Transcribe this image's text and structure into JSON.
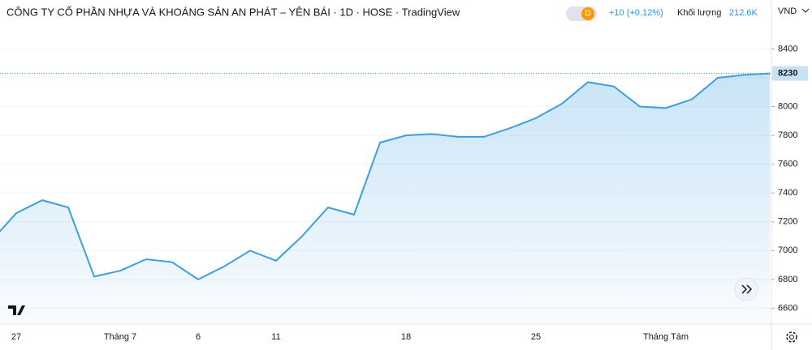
{
  "header": {
    "title": "CÔNG TY CỔ PHẦN NHỰA VÀ KHOÁNG SẢN AN PHÁT – YÊN BÁI · 1D · HOSE · TradingView",
    "badge": "D",
    "change": "+10 (+0.12%)",
    "volume_label": "Khối lượng",
    "volume": "212.6K",
    "currency": "VND"
  },
  "chart_data": {
    "type": "area",
    "categories": [
      null,
      "27",
      null,
      null,
      null,
      "Tháng 7",
      null,
      null,
      "6",
      null,
      null,
      "11",
      null,
      null,
      null,
      null,
      "18",
      null,
      null,
      null,
      null,
      "25",
      null,
      null,
      null,
      null,
      "Tháng Tám",
      null,
      null,
      null,
      null
    ],
    "values": [
      7060,
      7260,
      7350,
      7300,
      6820,
      6860,
      6940,
      6920,
      6800,
      6890,
      7000,
      6930,
      7100,
      7300,
      7250,
      7750,
      7800,
      7810,
      7790,
      7790,
      7850,
      7920,
      8020,
      8170,
      8140,
      8000,
      7990,
      8050,
      8200,
      8220,
      8230
    ],
    "color": "#3d9ee0",
    "ylim": [
      6490,
      8740
    ],
    "yticks": [
      6600,
      6800,
      7000,
      7200,
      7400,
      7600,
      7800,
      8000,
      8200,
      8400
    ],
    "grid": true
  }
}
